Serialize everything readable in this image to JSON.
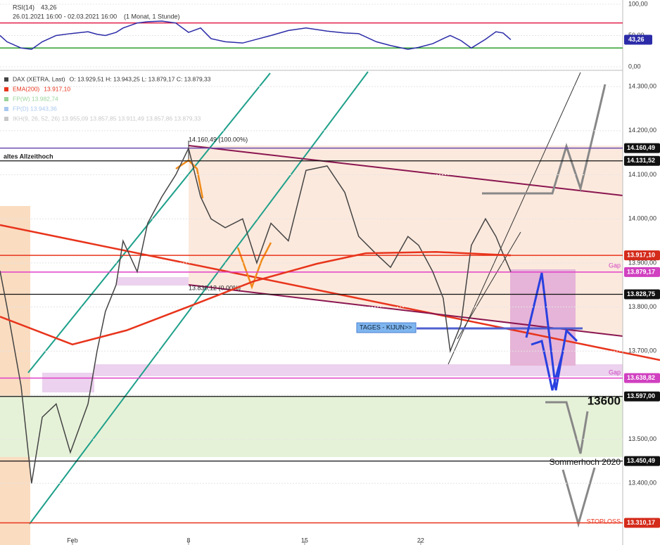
{
  "chart_data": [
    {
      "type": "line",
      "panel": "rsi",
      "title": "RSI(14)",
      "subtitle": "26.01.2021 16:00 - 02.03.2021 16:00",
      "period": "(1 Monat, 1 Stunde)",
      "last_value": {
        "value": 43.26,
        "label": "43,26"
      },
      "color": "#2b2ba8",
      "x": [
        -3.12,
        -2.82,
        -2.21,
        -1.76,
        -1.3,
        -0.7,
        -0.09,
        0.67,
        1.06,
        1.42,
        1.88,
        2.18,
        2.79,
        3.24,
        3.85,
        4.45,
        5.0,
        5.52,
        5.97,
        6.58,
        7.33,
        7.94,
        8.55,
        9.3,
        10.06,
        10.97,
        11.73,
        12.33,
        13.09,
        13.7,
        14.45,
        14.91,
        15.52,
        15.97,
        16.27,
        16.73,
        17.18,
        17.79,
        18.24,
        18.55,
        18.88
      ],
      "values": [
        50,
        40,
        30,
        28,
        40,
        50,
        53,
        56,
        52,
        50,
        55,
        62,
        70,
        72,
        73,
        70,
        55,
        62,
        45,
        40,
        38,
        44,
        50,
        58,
        62,
        57,
        54,
        53,
        40,
        34,
        28,
        31,
        37,
        45,
        50,
        42,
        30,
        44,
        56,
        54,
        43.26
      ],
      "xlim": [
        -3.12,
        23.7
      ],
      "ylim": [
        -5.6,
        106.7
      ],
      "yticks": [
        {
          "value": 100,
          "label": "100,00"
        },
        {
          "value": 50,
          "label": "50,00"
        },
        {
          "value": 0,
          "label": "0,00"
        }
      ],
      "levels": [
        {
          "value": 70,
          "color": "#e0204a"
        },
        {
          "value": 30,
          "color": "#2ca02c"
        }
      ]
    },
    {
      "type": "line",
      "panel": "price",
      "series": [
        {
          "name": "DAX (XETRA, Last)",
          "legend_value": "O: 13.929,51  H: 13.943,25  L: 13.879,17  C: 13.879,33",
          "color": "#444444",
          "x": [
            -3.12,
            -2.82,
            -2.21,
            -1.76,
            -1.3,
            -0.7,
            -0.09,
            0.67,
            1.06,
            1.42,
            1.88,
            2.18,
            2.79,
            3.24,
            3.85,
            4.45,
            5.0,
            5.52,
            5.97,
            6.58,
            7.33,
            7.94,
            8.55,
            9.3,
            10.06,
            10.97,
            11.73,
            12.33,
            13.09,
            13.7,
            14.45,
            14.91,
            15.52,
            15.97,
            16.27,
            16.73,
            17.18,
            17.79,
            18.24,
            18.55,
            18.88
          ],
          "values": [
            13882,
            13800,
            13620,
            13400,
            13550,
            13580,
            13470,
            13580,
            13700,
            13790,
            13850,
            13950,
            13880,
            13990,
            14050,
            14100,
            14160,
            14050,
            14000,
            13980,
            14000,
            13900,
            13990,
            13950,
            14110,
            14120,
            14060,
            13960,
            13920,
            13890,
            13960,
            13940,
            13880,
            13820,
            13700,
            13760,
            13940,
            14000,
            13960,
            13920,
            13880
          ]
        },
        {
          "name": "EMA(200)",
          "legend_value": "13.917,10",
          "color": "#e8341c",
          "x": [
            -3.12,
            0.0,
            2.33,
            5.06,
            7.79,
            10.52,
            12.64,
            15.67,
            18.88
          ],
          "values": [
            13778,
            13715,
            13747,
            13802,
            13858,
            13898,
            13922,
            13925,
            13917.1
          ]
        }
      ],
      "legend_extra": [
        {
          "text": "FP(W)  13.982,74",
          "color": "#9bd39b"
        },
        {
          "text": "FP(D)  13.943,36",
          "color": "#a9c8f0"
        },
        {
          "text": "IKH(9, 26, 52, 26)  13.955,09  13.857,85  13.911,49  13.857,86  13.879,33",
          "color": "#c8c8c8"
        }
      ],
      "xlim": [
        -3.12,
        23.7
      ],
      "xticks": [
        {
          "value": 0,
          "label": "Feb"
        },
        {
          "value": 5,
          "label": "8"
        },
        {
          "value": 10,
          "label": "15"
        },
        {
          "value": 15,
          "label": "22"
        }
      ],
      "ylim": [
        13260,
        14329
      ],
      "yticks": [
        {
          "value": 14300,
          "label": "14.300,00"
        },
        {
          "value": 14200,
          "label": "14.200,00"
        },
        {
          "value": 14100,
          "label": "14.100,00"
        },
        {
          "value": 14000,
          "label": "14.000,00"
        },
        {
          "value": 13900,
          "label": "13.900,00"
        },
        {
          "value": 13800,
          "label": "13.800,00"
        },
        {
          "value": 13700,
          "label": "13.700,00"
        },
        {
          "value": 13600,
          "label": "13.600,00"
        },
        {
          "value": 13500,
          "label": "13.500,00"
        },
        {
          "value": 13400,
          "label": "13.400,00"
        }
      ],
      "levels": [
        {
          "value": 14160.49,
          "label": "14.160,49",
          "color": "#6a4bb0",
          "box": "#111111"
        },
        {
          "value": 14131.52,
          "label": "14.131,52",
          "color": "#111111",
          "box": "#111111"
        },
        {
          "value": 13917.1,
          "label": "13.917,10",
          "color": "#e8341c",
          "box": "#d42a1a"
        },
        {
          "value": 13879.17,
          "label": "13.879,17",
          "color": "#e040c8",
          "box": "#d040c0"
        },
        {
          "value": 13828.75,
          "label": "13.828,75",
          "color": "#111111",
          "box": "#111111"
        },
        {
          "value": 13638.82,
          "label": "13.638,82",
          "color": "#e040c8",
          "box": "#d040c0"
        },
        {
          "value": 13597,
          "label": "13.597,00",
          "color": "#111111",
          "box": "#111111"
        },
        {
          "value": 13450.49,
          "label": "13.450,49",
          "color": "#111111",
          "box": "#111111"
        },
        {
          "value": 13310.17,
          "label": "13.310,17",
          "color": "#e8341c",
          "box": "#d42a1a"
        }
      ],
      "annotations": {
        "ath": "altes Allzeithoch",
        "fib100": "14.160,49 (100.00%)",
        "fib0": "13.830,12 (0.00%)",
        "kijun": "TAGES - KIJUN>>",
        "level": "13600",
        "summer": "Sommerhoch 2020",
        "stop": "STOPLOSS",
        "gap": "Gap"
      }
    }
  ]
}
